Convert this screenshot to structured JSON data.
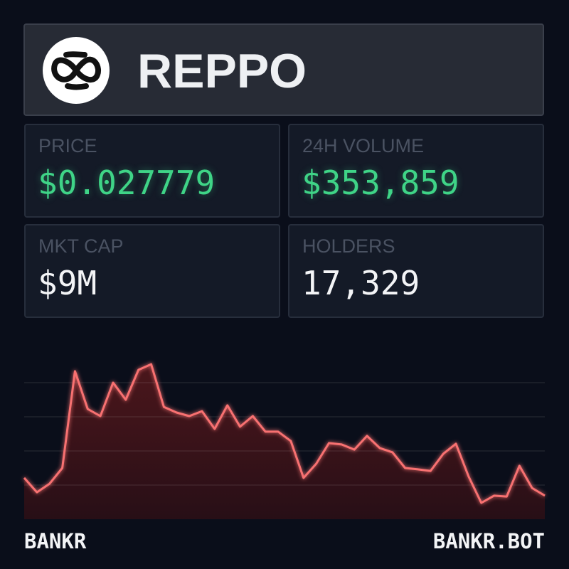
{
  "header": {
    "title": "REPPO"
  },
  "stats": [
    {
      "label": "PRICE",
      "value": "$0.027779"
    },
    {
      "label": "24H VOLUME",
      "value": "$353,859"
    },
    {
      "label": "MKT CAP",
      "value": "$9M"
    },
    {
      "label": "HOLDERS",
      "value": "17,329"
    }
  ],
  "chart_data": {
    "type": "line",
    "color": "#f87171",
    "values": [
      24.2,
      15.8,
      20.8,
      30,
      86.7,
      64.6,
      60.4,
      80,
      70,
      87.5,
      90.8,
      65.8,
      62.5,
      60.4,
      63.3,
      52.9,
      66.7,
      54.2,
      60.4,
      51.3,
      51.3,
      45.8,
      24.2,
      32.5,
      44.6,
      43.8,
      40.8,
      48.8,
      41.7,
      39.2,
      30,
      29.2,
      28.3,
      38.3,
      44.2,
      25,
      9.6,
      13.8,
      13.3,
      31.3,
      18.3,
      13.8
    ],
    "ylim": [
      0,
      100
    ],
    "yticks": [
      20,
      40,
      60,
      80
    ],
    "grid": true
  },
  "footer": {
    "left": "BANKR",
    "right": "BANKR.BOT"
  }
}
